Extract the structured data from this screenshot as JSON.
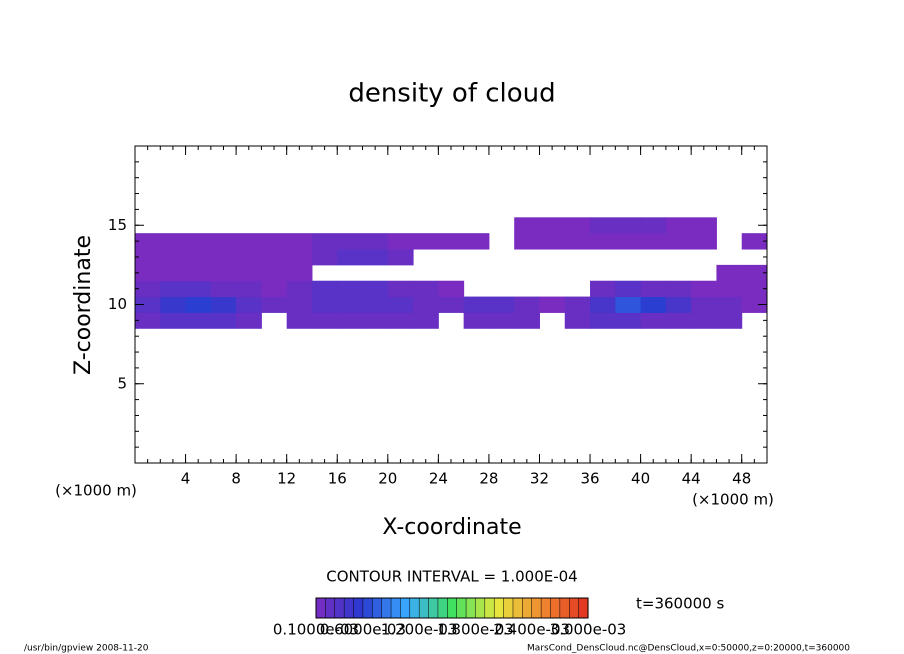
{
  "chart_data": {
    "type": "heatmap",
    "title": "density of cloud",
    "x_label": "X-coordinate",
    "y_label": "Z-coordinate",
    "x_unit": "(×1000 m)",
    "y_unit": "(×1000 m)",
    "xlim": [
      0,
      50
    ],
    "ylim": [
      0,
      20
    ],
    "xticks": [
      4,
      8,
      12,
      16,
      20,
      24,
      28,
      32,
      36,
      40,
      44,
      48
    ],
    "yticks": [
      5,
      10,
      15
    ],
    "minor_step": 1,
    "x": [
      1,
      3,
      5,
      7,
      9,
      11,
      13,
      15,
      17,
      19,
      21,
      23,
      25,
      27,
      29,
      31,
      33,
      35,
      37,
      39,
      41,
      43,
      45,
      47,
      49
    ],
    "z": [
      9,
      10,
      11,
      12,
      13,
      14,
      15
    ],
    "values": [
      [
        0.0002,
        0.0003,
        0.0003,
        0.0003,
        0.0002,
        null,
        0.0002,
        0.0002,
        0.0002,
        0.0002,
        0.0002,
        0.0002,
        null,
        0.0002,
        0.0002,
        0.0002,
        null,
        0.0002,
        0.0003,
        0.0003,
        0.0002,
        0.0002,
        0.0002,
        0.0002,
        null
      ],
      [
        0.0003,
        0.0005,
        0.0006,
        0.0005,
        0.0003,
        0.0002,
        0.0002,
        0.0003,
        0.0003,
        0.0003,
        0.0003,
        0.0002,
        0.0002,
        0.0003,
        0.0003,
        0.0002,
        0.0001,
        0.0002,
        0.0004,
        0.0007,
        0.0006,
        0.0004,
        0.0002,
        0.0002,
        0.0001
      ],
      [
        0.0002,
        0.0003,
        0.0003,
        0.0002,
        0.0002,
        0.0001,
        0.0002,
        0.0003,
        0.0003,
        0.0003,
        0.0002,
        0.0002,
        0.0001,
        null,
        null,
        null,
        null,
        null,
        0.0002,
        0.0003,
        0.0002,
        0.0002,
        0.0001,
        0.0001,
        0.0001
      ],
      [
        0.0001,
        0.0001,
        0.0001,
        0.0001,
        0.0001,
        0.0001,
        0.0001,
        null,
        null,
        null,
        null,
        null,
        null,
        null,
        null,
        null,
        null,
        null,
        null,
        null,
        null,
        null,
        null,
        0.0001,
        0.0001
      ],
      [
        0.0001,
        0.0001,
        0.0001,
        0.0001,
        0.0001,
        0.0001,
        0.0001,
        0.0002,
        0.0003,
        0.0003,
        0.0002,
        null,
        null,
        null,
        null,
        null,
        null,
        null,
        null,
        null,
        null,
        null,
        null,
        null,
        null
      ],
      [
        0.0001,
        0.0001,
        0.0001,
        0.0001,
        0.0001,
        0.0001,
        0.0001,
        0.0002,
        0.0002,
        0.0002,
        0.0001,
        0.0001,
        0.0001,
        0.0001,
        null,
        0.0001,
        0.0001,
        0.0001,
        0.0001,
        0.0001,
        0.0001,
        0.0001,
        0.0001,
        null,
        0.0001
      ],
      [
        null,
        null,
        null,
        null,
        null,
        null,
        null,
        null,
        null,
        null,
        null,
        null,
        null,
        null,
        null,
        0.0001,
        0.0001,
        0.0001,
        0.0002,
        0.0002,
        0.0002,
        0.0001,
        0.0001,
        null,
        null
      ]
    ],
    "colors": [
      "#7a2cc0",
      "#2a3ad0",
      "#3aa8ff",
      "#40e060",
      "#e8e840",
      "#f08830",
      "#e03020"
    ],
    "clim": [
      0.0001,
      0.003
    ],
    "contour_text": "CONTOUR INTERVAL = 1.000E-04",
    "time_text": "t=360000 s",
    "cbar_ticks": [
      {
        "value": 0.0001,
        "label": "0.1000e-03"
      },
      {
        "value": 0.0006,
        "label": "0.6000e-03"
      },
      {
        "value": 0.0012,
        "label": "1.200e-03"
      },
      {
        "value": 0.0018,
        "label": "1.800e-03"
      },
      {
        "value": 0.0024,
        "label": "2.400e-03"
      },
      {
        "value": 0.003,
        "label": "3.000e-03"
      }
    ],
    "footer_left": "/usr/bin/gpview   2008-11-20",
    "footer_right": "MarsCond_DensCloud.nc@DensCloud,x=0:50000,z=0:20000,t=360000"
  }
}
